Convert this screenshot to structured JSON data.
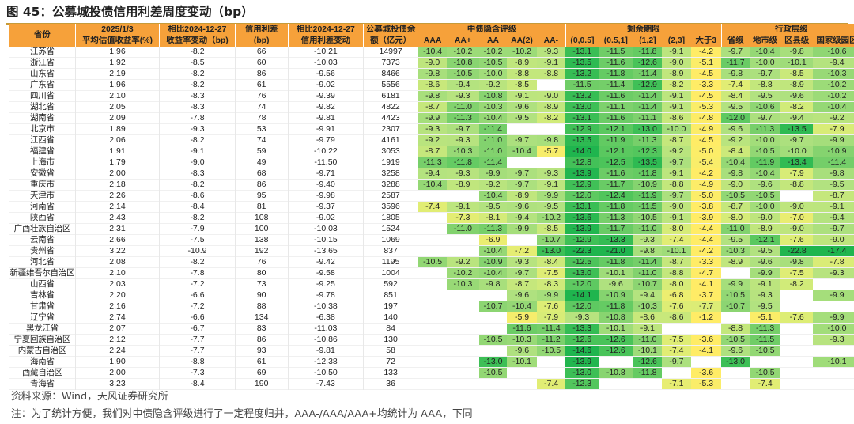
{
  "figure": {
    "title": "图 45：公募城投债信用利差周度变动（bp）"
  },
  "table": {
    "header": {
      "province": "省份",
      "yield_top": "2025/1/3",
      "yield_bottom": "平均估值收益率(%)",
      "yield_change_top": "相比2024-12-27",
      "yield_change_bottom": "收益率变动（bp)",
      "spread_top": "信用利差",
      "spread_bottom": "(bp)",
      "spread_change_top": "相比2024-12-27",
      "spread_change_bottom": "信用利差变动",
      "balance_top": "公募城投债余",
      "balance_bottom": "额（亿元）",
      "group_rating": "中债隐含评级",
      "group_term": "剩余期限",
      "group_admin": "行政层级",
      "rating_cols": [
        "AAA",
        "AA+",
        "AA",
        "AA(2)",
        "AA-"
      ],
      "term_cols": [
        "(0,0.5]",
        "(0.5,1]",
        "(1,2]",
        "(2,3]",
        "大于3"
      ],
      "admin_cols": [
        "省级",
        "地市级",
        "区县级",
        "国家级园区"
      ]
    },
    "rows": [
      {
        "province": "江苏省",
        "yield": "1.96",
        "ychg": "-8.2",
        "spread": "66",
        "schg": "-10.21",
        "bal": "14997",
        "rating": [
          "-10.4",
          "-10.2",
          "-10.2",
          "-10.2",
          "-9.3"
        ],
        "term": [
          "-13.1",
          "-11.5",
          "-11.8",
          "-9.1",
          "-4.2"
        ],
        "admin": [
          "-9.7",
          "-10.4",
          "-9.8",
          "-10.6"
        ]
      },
      {
        "province": "浙江省",
        "yield": "1.92",
        "ychg": "-8.5",
        "spread": "60",
        "schg": "-10.03",
        "bal": "7373",
        "rating": [
          "-9.0",
          "-10.8",
          "-10.5",
          "-8.9",
          "-9.1"
        ],
        "term": [
          "-13.5",
          "-11.6",
          "-12.6",
          "-9.0",
          "-5.1"
        ],
        "admin": [
          "-11.7",
          "-10.0",
          "-10.1",
          "-9.4"
        ]
      },
      {
        "province": "山东省",
        "yield": "2.19",
        "ychg": "-8.2",
        "spread": "86",
        "schg": "-9.56",
        "bal": "8466",
        "rating": [
          "-9.8",
          "-10.5",
          "-10.0",
          "-8.8",
          "-8.8"
        ],
        "term": [
          "-13.2",
          "-11.8",
          "-11.4",
          "-8.9",
          "-4.5"
        ],
        "admin": [
          "-9.8",
          "-9.7",
          "-8.5",
          "-10.3"
        ]
      },
      {
        "province": "广东省",
        "yield": "1.96",
        "ychg": "-8.2",
        "spread": "61",
        "schg": "-9.02",
        "bal": "5556",
        "rating": [
          "-8.6",
          "-9.4",
          "-9.2",
          "-8.5",
          ""
        ],
        "term": [
          "-11.5",
          "-11.4",
          "-12.9",
          "-8.2",
          "-3.3"
        ],
        "admin": [
          "-7.4",
          "-8.8",
          "-8.9",
          "-10.2"
        ]
      },
      {
        "province": "四川省",
        "yield": "2.10",
        "ychg": "-8.3",
        "spread": "76",
        "schg": "-9.39",
        "bal": "6181",
        "rating": [
          "-9.8",
          "-9.3",
          "-10.8",
          "-9.1",
          "-9.0"
        ],
        "term": [
          "-13.2",
          "-11.6",
          "-11.4",
          "-9.1",
          "-4.5"
        ],
        "admin": [
          "-8.4",
          "-9.5",
          "-9.6",
          "-10.2"
        ]
      },
      {
        "province": "湖北省",
        "yield": "2.05",
        "ychg": "-8.3",
        "spread": "74",
        "schg": "-9.82",
        "bal": "4822",
        "rating": [
          "-8.7",
          "-11.0",
          "-10.3",
          "-9.6",
          "-8.9"
        ],
        "term": [
          "-13.0",
          "-11.1",
          "-11.4",
          "-9.1",
          "-5.3"
        ],
        "admin": [
          "-9.5",
          "-10.6",
          "-8.2",
          "-10.4"
        ]
      },
      {
        "province": "湖南省",
        "yield": "2.09",
        "ychg": "-7.8",
        "spread": "78",
        "schg": "-9.81",
        "bal": "4423",
        "rating": [
          "-9.9",
          "-11.3",
          "-10.4",
          "-9.5",
          "-8.2"
        ],
        "term": [
          "-13.1",
          "-11.6",
          "-11.1",
          "-8.6",
          "-4.8"
        ],
        "admin": [
          "-12.0",
          "-9.7",
          "-9.4",
          "-9.2"
        ]
      },
      {
        "province": "北京市",
        "yield": "1.89",
        "ychg": "-9.3",
        "spread": "53",
        "schg": "-9.91",
        "bal": "2307",
        "rating": [
          "-9.3",
          "-9.7",
          "-11.4",
          "",
          ""
        ],
        "term": [
          "-12.9",
          "-12.1",
          "-13.0",
          "-10.0",
          "-4.9"
        ],
        "admin": [
          "-9.6",
          "-11.3",
          "-13.5",
          "-7.9"
        ]
      },
      {
        "province": "江西省",
        "yield": "2.06",
        "ychg": "-8.2",
        "spread": "74",
        "schg": "-9.79",
        "bal": "4161",
        "rating": [
          "-9.2",
          "-9.3",
          "-11.0",
          "-9.7",
          "-9.8"
        ],
        "term": [
          "-13.5",
          "-11.9",
          "-11.3",
          "-8.7",
          "-4.5"
        ],
        "admin": [
          "-9.2",
          "-10.0",
          "-9.7",
          "-9.9"
        ]
      },
      {
        "province": "福建省",
        "yield": "1.91",
        "ychg": "-9.1",
        "spread": "59",
        "schg": "-10.22",
        "bal": "3053",
        "rating": [
          "-8.7",
          "-10.3",
          "-11.0",
          "-10.4",
          "-5.7"
        ],
        "term": [
          "-14.0",
          "-12.1",
          "-12.3",
          "-9.2",
          "-5.0"
        ],
        "admin": [
          "-8.4",
          "-10.5",
          "-10.0",
          "-10.9"
        ]
      },
      {
        "province": "上海市",
        "yield": "1.79",
        "ychg": "-9.0",
        "spread": "49",
        "schg": "-11.50",
        "bal": "1919",
        "rating": [
          "-11.3",
          "-11.8",
          "-11.4",
          "",
          ""
        ],
        "term": [
          "-12.8",
          "-12.5",
          "-13.5",
          "-9.7",
          "-5.4"
        ],
        "admin": [
          "-10.4",
          "-11.9",
          "-13.4",
          "-11.4"
        ]
      },
      {
        "province": "安徽省",
        "yield": "2.00",
        "ychg": "-8.3",
        "spread": "68",
        "schg": "-9.71",
        "bal": "3258",
        "rating": [
          "-9.4",
          "-9.3",
          "-9.9",
          "-9.7",
          "-9.3"
        ],
        "term": [
          "-13.9",
          "-11.6",
          "-11.8",
          "-9.1",
          "-4.2"
        ],
        "admin": [
          "-9.8",
          "-10.4",
          "-7.9",
          "-9.8"
        ]
      },
      {
        "province": "重庆市",
        "yield": "2.18",
        "ychg": "-8.2",
        "spread": "86",
        "schg": "-9.40",
        "bal": "3288",
        "rating": [
          "-10.4",
          "-8.9",
          "-9.2",
          "-9.7",
          "-9.1"
        ],
        "term": [
          "-12.9",
          "-11.7",
          "-10.9",
          "-8.8",
          "-4.9"
        ],
        "admin": [
          "-9.0",
          "-9.6",
          "-8.8",
          "-9.5"
        ]
      },
      {
        "province": "天津市",
        "yield": "2.26",
        "ychg": "-8.6",
        "spread": "95",
        "schg": "-9.98",
        "bal": "2587",
        "rating": [
          "",
          "",
          "-10.4",
          "-8.9",
          "-9.9"
        ],
        "term": [
          "-12.0",
          "-12.4",
          "-11.9",
          "-9.7",
          "-5.0"
        ],
        "admin": [
          "-10.5",
          "-10.5",
          "",
          "-8.7"
        ]
      },
      {
        "province": "河南省",
        "yield": "2.14",
        "ychg": "-8.4",
        "spread": "81",
        "schg": "-9.37",
        "bal": "3596",
        "rating": [
          "-7.4",
          "-9.1",
          "-9.5",
          "-9.6",
          "-9.5"
        ],
        "term": [
          "-13.1",
          "-11.8",
          "-11.5",
          "-9.0",
          "-3.8"
        ],
        "admin": [
          "-8.7",
          "-10.0",
          "-9.0",
          "-9.1"
        ]
      },
      {
        "province": "陕西省",
        "yield": "2.43",
        "ychg": "-8.2",
        "spread": "108",
        "schg": "-9.02",
        "bal": "1805",
        "rating": [
          "",
          "-7.3",
          "-8.1",
          "-9.4",
          "-10.2"
        ],
        "term": [
          "-13.6",
          "-11.3",
          "-10.5",
          "-9.1",
          "-3.9"
        ],
        "admin": [
          "-8.0",
          "-9.0",
          "-7.0",
          "-9.4"
        ]
      },
      {
        "province": "广西壮族自治区",
        "yield": "2.31",
        "ychg": "-7.9",
        "spread": "100",
        "schg": "-10.03",
        "bal": "1524",
        "rating": [
          "",
          "-11.0",
          "-11.3",
          "-9.9",
          "-8.5"
        ],
        "term": [
          "-13.9",
          "-11.7",
          "-11.0",
          "-8.0",
          "-4.4"
        ],
        "admin": [
          "-11.0",
          "-8.9",
          "-9.0",
          "-9.7"
        ]
      },
      {
        "province": "云南省",
        "yield": "2.66",
        "ychg": "-7.5",
        "spread": "138",
        "schg": "-10.15",
        "bal": "1069",
        "rating": [
          "",
          "",
          "-6.9",
          "",
          "-10.7"
        ],
        "term": [
          "-12.9",
          "-13.3",
          "-9.3",
          "-7.4",
          "-4.4"
        ],
        "admin": [
          "-9.5",
          "-12.1",
          "-7.6",
          "-9.0"
        ]
      },
      {
        "province": "贵州省",
        "yield": "3.22",
        "ychg": "-10.9",
        "spread": "192",
        "schg": "-13.65",
        "bal": "837",
        "rating": [
          "",
          "",
          "-10.4",
          "-7.2",
          "-13.0"
        ],
        "term": [
          "-22.3",
          "-21.0",
          "-9.8",
          "-10.1",
          "-4.2"
        ],
        "admin": [
          "-10.3",
          "-9.5",
          "-22.8",
          "-17.4"
        ]
      },
      {
        "province": "河北省",
        "yield": "2.08",
        "ychg": "-8.2",
        "spread": "76",
        "schg": "-9.42",
        "bal": "1195",
        "rating": [
          "-10.5",
          "-9.2",
          "-10.9",
          "-9.3",
          "-8.4"
        ],
        "term": [
          "-12.5",
          "-11.8",
          "-11.4",
          "-8.7",
          "-3.3"
        ],
        "admin": [
          "-8.9",
          "-9.6",
          "-9.8",
          "-7.8"
        ]
      },
      {
        "province": "新疆维吾尔自治区",
        "yield": "2.10",
        "ychg": "-7.8",
        "spread": "80",
        "schg": "-9.58",
        "bal": "1004",
        "rating": [
          "",
          "-10.2",
          "-10.4",
          "-9.7",
          "-7.5"
        ],
        "term": [
          "-13.0",
          "-10.1",
          "-11.0",
          "-8.8",
          "-4.7"
        ],
        "admin": [
          "",
          "-9.9",
          "-7.5",
          "-9.3"
        ]
      },
      {
        "province": "山西省",
        "yield": "2.03",
        "ychg": "-7.2",
        "spread": "73",
        "schg": "-9.25",
        "bal": "592",
        "rating": [
          "",
          "-10.3",
          "-9.8",
          "-8.7",
          "-8.3"
        ],
        "term": [
          "-12.0",
          "-9.6",
          "-10.7",
          "-8.0",
          "-4.1"
        ],
        "admin": [
          "-9.9",
          "-9.1",
          "-8.2",
          ""
        ]
      },
      {
        "province": "吉林省",
        "yield": "2.20",
        "ychg": "-6.6",
        "spread": "90",
        "schg": "-9.78",
        "bal": "851",
        "rating": [
          "",
          "",
          "",
          "-9.6",
          "-9.9"
        ],
        "term": [
          "-14.1",
          "-10.9",
          "-9.4",
          "-6.8",
          "-3.7"
        ],
        "admin": [
          "-10.5",
          "-9.3",
          "",
          "-9.9"
        ]
      },
      {
        "province": "甘肃省",
        "yield": "2.16",
        "ychg": "-7.2",
        "spread": "88",
        "schg": "-10.38",
        "bal": "197",
        "rating": [
          "",
          "",
          "-10.7",
          "-10.4",
          "-7.6"
        ],
        "term": [
          "-12.0",
          "-11.8",
          "-10.3",
          "-7.6",
          "-7.7"
        ],
        "admin": [
          "-10.7",
          "-9.5",
          "",
          ""
        ]
      },
      {
        "province": "辽宁省",
        "yield": "2.74",
        "ychg": "-6.6",
        "spread": "134",
        "schg": "-6.38",
        "bal": "140",
        "rating": [
          "",
          "",
          "",
          "-5.9",
          "-7.9"
        ],
        "term": [
          "-9.3",
          "-10.8",
          "-8.6",
          "-8.6",
          "-1.2"
        ],
        "admin": [
          "",
          "-5.1",
          "-7.6",
          "-9.9"
        ]
      },
      {
        "province": "黑龙江省",
        "yield": "2.07",
        "ychg": "-6.7",
        "spread": "83",
        "schg": "-11.03",
        "bal": "84",
        "rating": [
          "",
          "",
          "",
          "-11.6",
          "-11.4"
        ],
        "term": [
          "-13.3",
          "-10.1",
          "-9.1",
          "",
          ""
        ],
        "admin": [
          "-8.8",
          "-11.3",
          "",
          "-10.0"
        ]
      },
      {
        "province": "宁夏回族自治区",
        "yield": "2.12",
        "ychg": "-7.7",
        "spread": "86",
        "schg": "-10.86",
        "bal": "130",
        "rating": [
          "",
          "",
          "-10.5",
          "-10.3",
          "-11.2"
        ],
        "term": [
          "-12.6",
          "-12.6",
          "-11.0",
          "-7.5",
          "-3.6"
        ],
        "admin": [
          "-10.5",
          "-11.5",
          "",
          "-9.3"
        ]
      },
      {
        "province": "内蒙古自治区",
        "yield": "2.24",
        "ychg": "-7.7",
        "spread": "93",
        "schg": "-9.81",
        "bal": "58",
        "rating": [
          "",
          "",
          "",
          "-9.6",
          "-10.5"
        ],
        "term": [
          "-14.6",
          "-12.6",
          "-10.1",
          "-7.4",
          "-4.1"
        ],
        "admin": [
          "-9.6",
          "-10.5",
          "",
          ""
        ]
      },
      {
        "province": "海南省",
        "yield": "1.90",
        "ychg": "-8.8",
        "spread": "61",
        "schg": "-12.38",
        "bal": "72",
        "rating": [
          "",
          "",
          "-13.0",
          "-10.1",
          ""
        ],
        "term": [
          "-13.9",
          "",
          "-12.6",
          "-9.7",
          ""
        ],
        "admin": [
          "-13.0",
          "",
          "",
          "-10.1"
        ]
      },
      {
        "province": "西藏自治区",
        "yield": "2.00",
        "ychg": "-7.3",
        "spread": "69",
        "schg": "-10.50",
        "bal": "133",
        "rating": [
          "",
          "",
          "-10.5",
          "",
          ""
        ],
        "term": [
          "-13.0",
          "-10.8",
          "-11.8",
          "",
          "-3.6"
        ],
        "admin": [
          "",
          "-10.5",
          "",
          ""
        ]
      },
      {
        "province": "青海省",
        "yield": "3.23",
        "ychg": "-8.4",
        "spread": "190",
        "schg": "-7.43",
        "bal": "36",
        "rating": [
          "",
          "",
          "",
          "",
          "-7.4"
        ],
        "term": [
          "-12.3",
          "",
          "",
          "-7.1",
          "-5.3"
        ],
        "admin": [
          "",
          "-7.4",
          "",
          ""
        ]
      }
    ]
  },
  "notes": {
    "source": "资料来源：Wind，天风证券研究所",
    "footnote": "注：为了统计方便，我们对中债隐含评级进行了一定程度归并，AAA-/AAA/AAA+均统计为 AAA，下同"
  },
  "colors": {
    "header_fill": "#f6a13a",
    "title_rule": "#c69b3a",
    "scale_strong_green": "#1fb54e",
    "scale_mid_green": "#a8db74",
    "scale_yellow": "#ffee6e"
  }
}
